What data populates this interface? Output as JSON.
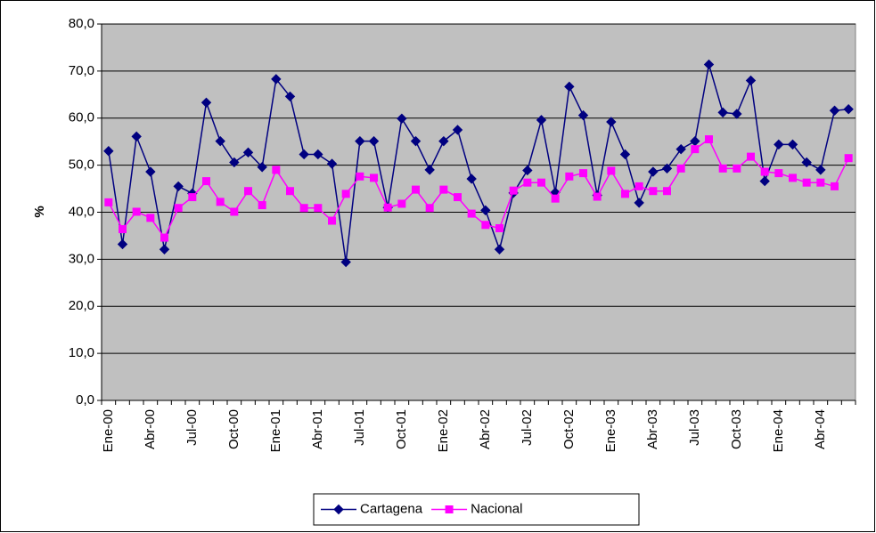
{
  "chart_data": {
    "type": "line",
    "ylabel": "%",
    "categories": [
      "Ene-00",
      null,
      null,
      "Abr-00",
      null,
      null,
      "Jul-00",
      null,
      null,
      "Oct-00",
      null,
      null,
      "Ene-01",
      null,
      null,
      "Abr-01",
      null,
      null,
      "Jul-01",
      null,
      null,
      "Oct-01",
      null,
      null,
      "Ene-02",
      null,
      null,
      "Abr-02",
      null,
      null,
      "Jul-02",
      null,
      null,
      "Oct-02",
      null,
      null,
      "Ene-03",
      null,
      null,
      "Abr-03",
      null,
      null,
      "Jul-03",
      null,
      null,
      "Oct-03",
      null,
      null,
      "Ene-04",
      null,
      null,
      "Abr-04",
      null,
      null
    ],
    "series": [
      {
        "name": "Cartagena",
        "color": "#000080",
        "marker": "diamond",
        "values": [
          53.0,
          33.2,
          56.1,
          48.6,
          32.1,
          45.5,
          44.0,
          63.3,
          55.1,
          50.6,
          52.7,
          49.6,
          68.3,
          64.6,
          52.3,
          52.3,
          50.3,
          29.4,
          55.1,
          55.1,
          41.0,
          59.9,
          55.1,
          49.0,
          55.1,
          57.5,
          47.1,
          40.4,
          32.1,
          44.1,
          48.9,
          59.6,
          44.2,
          66.7,
          60.6,
          43.6,
          59.2,
          52.3,
          42.0,
          48.6,
          49.3,
          53.4,
          55.1,
          71.4,
          61.2,
          60.9,
          68.0,
          46.6,
          54.4,
          54.4,
          50.6,
          49.0,
          61.6,
          61.9
        ]
      },
      {
        "name": "Nacional",
        "color": "#ff00ff",
        "marker": "square",
        "values": [
          42.1,
          36.4,
          40.1,
          38.8,
          34.6,
          40.9,
          43.2,
          46.6,
          42.2,
          40.1,
          44.5,
          41.5,
          49.0,
          44.5,
          40.9,
          40.9,
          38.2,
          43.9,
          47.6,
          47.3,
          41.0,
          41.8,
          44.8,
          40.9,
          44.8,
          43.2,
          39.7,
          37.3,
          36.6,
          44.6,
          46.3,
          46.3,
          42.9,
          47.6,
          48.3,
          43.3,
          48.8,
          43.9,
          45.5,
          44.5,
          44.5,
          49.3,
          53.4,
          55.5,
          49.3,
          49.3,
          51.8,
          48.6,
          48.3,
          47.3,
          46.3,
          46.3,
          45.5,
          51.5
        ]
      }
    ],
    "ylim": [
      0,
      80
    ],
    "yticks": [
      {
        "value": 0,
        "label": "0,0"
      },
      {
        "value": 10,
        "label": "10,0"
      },
      {
        "value": 20,
        "label": "20,0"
      },
      {
        "value": 30,
        "label": "30,0"
      },
      {
        "value": 40,
        "label": "40,0"
      },
      {
        "value": 50,
        "label": "50,0"
      },
      {
        "value": 60,
        "label": "60,0"
      },
      {
        "value": 70,
        "label": "70,0"
      },
      {
        "value": 80,
        "label": "80,0"
      }
    ],
    "grid": true,
    "legend": "bottom",
    "plot_background": "#c0c0c0"
  }
}
